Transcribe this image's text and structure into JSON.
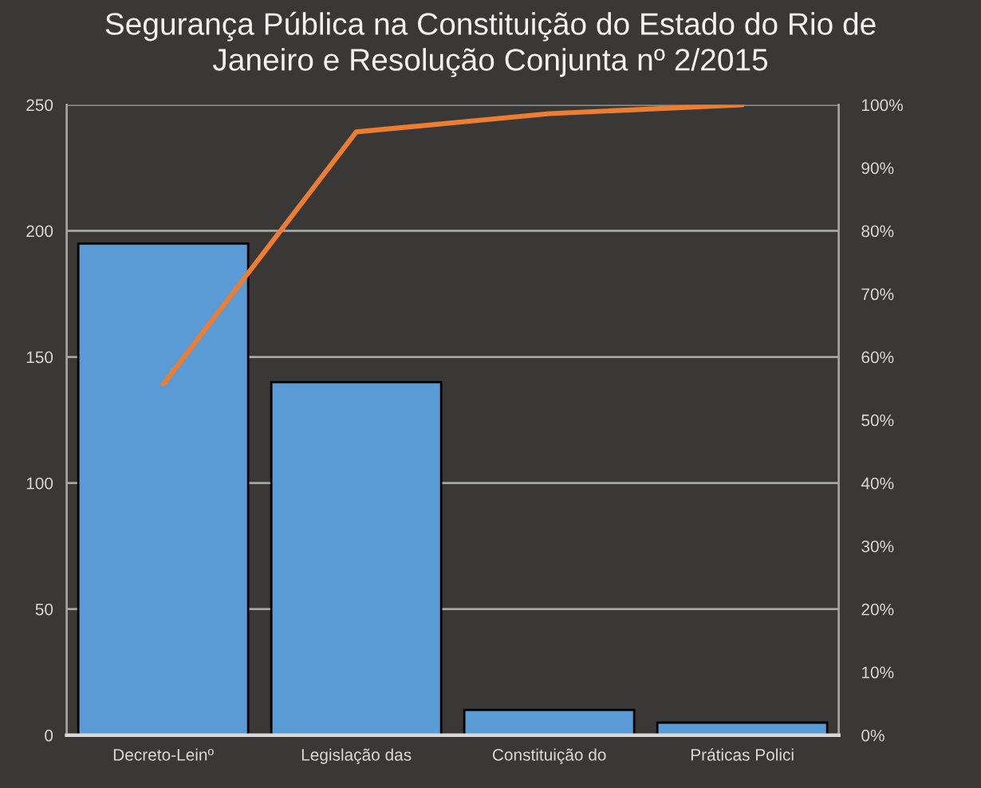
{
  "chart_data": {
    "type": "bar",
    "title": "Segurança Pública na Constituição do Estado do Rio de\nJaneiro e Resolução Conjunta nº 2/2015",
    "categories": [
      "Decreto-Leinº",
      "Legislação das",
      "Constituição do",
      "Práticas Polici"
    ],
    "series": [
      {
        "color": "#5b9bd5",
        "values": [
          195,
          140,
          10,
          5
        ]
      },
      {
        "type": "line",
        "axis": "y2",
        "color": "#ed7d31",
        "values": [
          55.7,
          95.7,
          98.6,
          100
        ]
      }
    ],
    "ylim": [
      0,
      250
    ],
    "yticks": [
      0,
      50,
      100,
      150,
      200,
      250
    ],
    "y2lim": [
      0,
      100
    ],
    "y2ticks": [
      {
        "value": 0,
        "label": "0%"
      },
      {
        "value": 10,
        "label": "10%"
      },
      {
        "value": 20,
        "label": "20%"
      },
      {
        "value": 30,
        "label": "30%"
      },
      {
        "value": 40,
        "label": "40%"
      },
      {
        "value": 50,
        "label": "50%"
      },
      {
        "value": 60,
        "label": "60%"
      },
      {
        "value": 70,
        "label": "70%"
      },
      {
        "value": 80,
        "label": "80%"
      },
      {
        "value": 90,
        "label": "90%"
      },
      {
        "value": 100,
        "label": "100%"
      }
    ],
    "grid": "y"
  }
}
